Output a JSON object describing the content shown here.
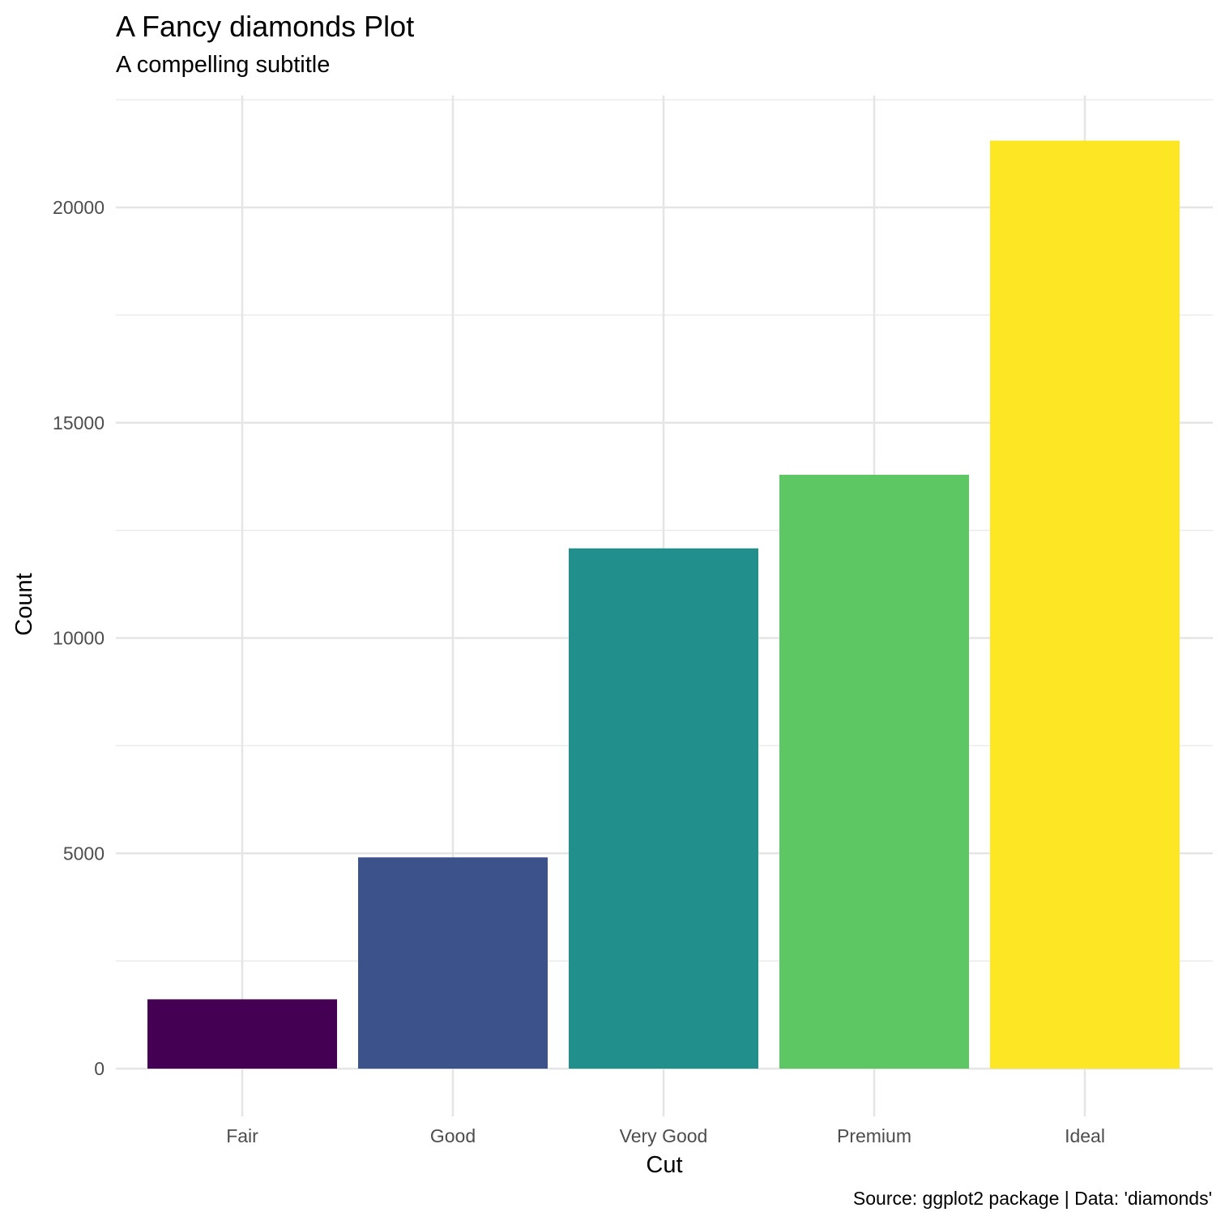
{
  "chart_data": {
    "type": "bar",
    "title": "A Fancy diamonds Plot",
    "subtitle": "A compelling subtitle",
    "caption": "Source: ggplot2 package | Data: 'diamonds'",
    "xlabel": "Cut",
    "ylabel": "Count",
    "categories": [
      "Fair",
      "Good",
      "Very Good",
      "Premium",
      "Ideal"
    ],
    "values": [
      1610,
      4906,
      12082,
      13791,
      21551
    ],
    "colors": [
      "#440154",
      "#3B528B",
      "#21908C",
      "#5DC863",
      "#FDE725"
    ],
    "yticks": [
      0,
      5000,
      10000,
      15000,
      20000
    ],
    "ylim": [
      0,
      22632
    ],
    "grid": true,
    "legend": "none"
  }
}
